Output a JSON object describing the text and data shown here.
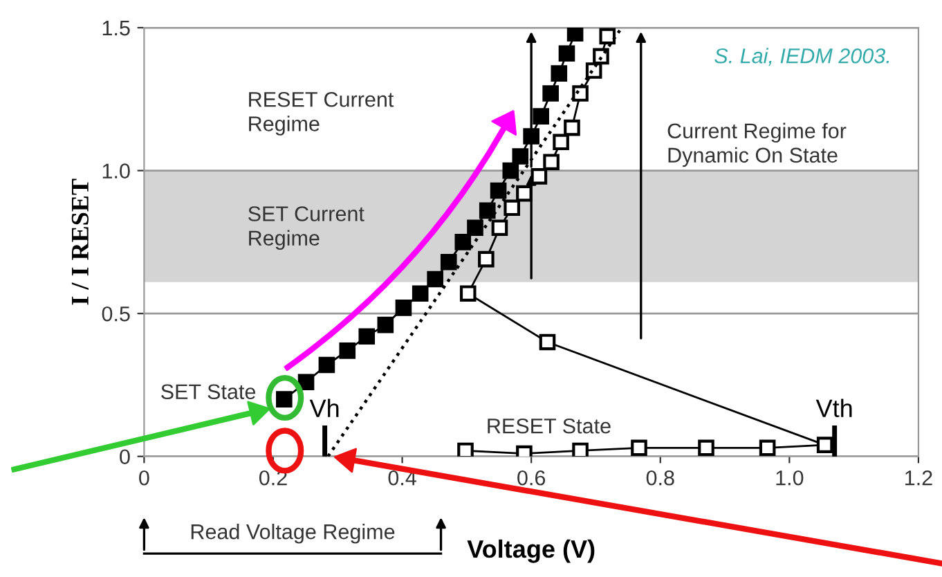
{
  "chart_data": {
    "type": "line",
    "xlabel": "Voltage (V)",
    "ylabel": "I / I RESET",
    "xlim": [
      0,
      1.2
    ],
    "ylim": [
      0,
      1.5
    ],
    "xticks": [
      0,
      0.2,
      0.4,
      0.6,
      0.8,
      {
        "value": 1,
        "label": "1.0"
      },
      1.2
    ],
    "yticks": [
      0,
      0.5,
      {
        "value": 1,
        "label": "1.0"
      },
      1.5
    ],
    "grid": "y",
    "line_style": "solid",
    "series": [
      {
        "color": "#000000",
        "marker": "square",
        "x": [
          0.217,
          0.251,
          0.283,
          0.315,
          0.345,
          0.374,
          0.402,
          0.428,
          0.451,
          0.472,
          0.494,
          0.513,
          0.532,
          0.549,
          0.568,
          0.583,
          0.6,
          0.615,
          0.63,
          0.643,
          0.655,
          0.668
        ],
        "values": [
          0.2,
          0.26,
          0.32,
          0.37,
          0.42,
          0.46,
          0.52,
          0.57,
          0.62,
          0.68,
          0.75,
          0.8,
          0.86,
          0.93,
          1.0,
          1.05,
          1.12,
          1.19,
          1.27,
          1.34,
          1.41,
          1.48
        ]
      },
      {
        "color": "#000000",
        "marker": "square",
        "x": [
          0.498,
          0.589,
          0.676,
          0.767,
          0.871,
          0.966,
          1.055,
          0.625,
          0.502,
          0.53,
          0.551,
          0.57,
          0.589,
          0.612,
          0.631,
          0.646,
          0.663,
          0.676,
          0.697,
          0.708,
          0.718
        ],
        "values": [
          0.02,
          0.01,
          0.02,
          0.03,
          0.03,
          0.03,
          0.04,
          0.4,
          0.57,
          0.69,
          0.8,
          0.87,
          0.92,
          0.98,
          1.03,
          1.1,
          1.15,
          1.27,
          1.35,
          1.4,
          1.47
        ]
      },
      {
        "color": "#000000",
        "marker": "none",
        "line_style": "dotted",
        "x": [
          0.285,
          0.74
        ],
        "values": [
          0,
          1.5
        ]
      }
    ],
    "bands": [
      {
        "axis": "y",
        "from": 0.61,
        "to": 1.0,
        "color": "#d4d4d4"
      }
    ],
    "ref_lines": [
      {
        "axis": "x",
        "value": 0.28,
        "label": "Vh"
      },
      {
        "axis": "x",
        "value": 1.07,
        "label": "Vth"
      }
    ],
    "annotations": [
      "RESET Current\nRegime",
      "SET Current\nRegime",
      "Current Regime for\nDynamic On State",
      "SET State",
      "RESET State",
      "Read Voltage Regime",
      "S. Lai, IEDM 2003."
    ]
  }
}
